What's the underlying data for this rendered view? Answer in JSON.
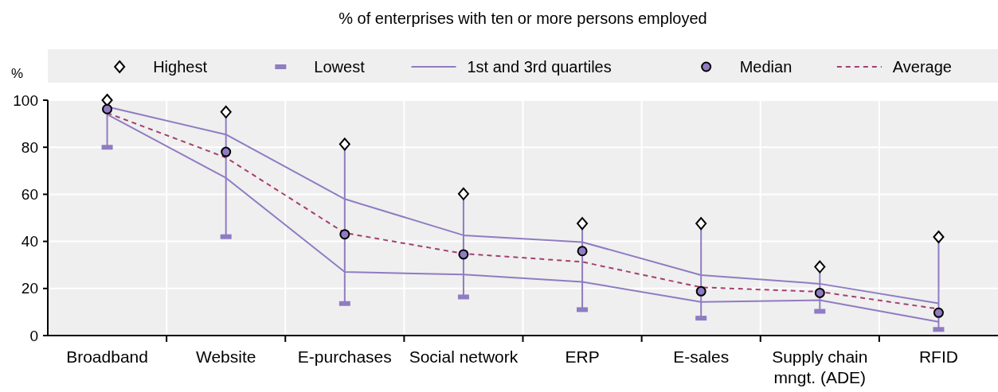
{
  "chart_data": {
    "type": "line",
    "title": "% of enterprises with ten or more persons employed",
    "ylabel": "%",
    "categories": [
      "Broadband",
      "Website",
      "E-purchases",
      "Social network",
      "ERP",
      "E-sales",
      "Supply chain mngt. (ADE)",
      "RFID"
    ],
    "ylim": [
      0,
      100
    ],
    "yticks": [
      0,
      20,
      40,
      60,
      80,
      100
    ],
    "grid": true,
    "legend": "top",
    "series": [
      {
        "name": "Highest",
        "type": "scatter",
        "marker": "diamond",
        "color": "#ffffff",
        "values": [
          100,
          95,
          81.3,
          60.2,
          47.6,
          47.6,
          29.2,
          41.9
        ]
      },
      {
        "name": "Lowest",
        "type": "scatter",
        "marker": "square",
        "color": "#8f7cc2",
        "values": [
          80,
          42,
          13.6,
          16.4,
          11,
          7.4,
          10.3,
          2.6
        ]
      },
      {
        "name": "1st and 3rd quartiles",
        "marker": "none",
        "line_style": "solid",
        "color": "#8f7cc2",
        "values": [
          97.2,
          85.4,
          58,
          42.6,
          39.7,
          25.7,
          22,
          13.7
        ]
      },
      {
        "marker": "none",
        "line_style": "solid",
        "color": "#8f7cc2",
        "values": [
          94,
          67,
          27,
          25.9,
          22.8,
          14.3,
          15,
          5.8
        ]
      },
      {
        "name": "Median",
        "type": "scatter",
        "marker": "circle",
        "color": "#8f7cc2",
        "values": [
          96.2,
          78,
          43,
          34.5,
          35.9,
          18.8,
          18.1,
          9.7
        ]
      },
      {
        "name": "Average",
        "marker": "none",
        "line_style": "dashed",
        "color": "#a3406f",
        "values": [
          94.6,
          75.6,
          43.6,
          34.8,
          31.3,
          20.5,
          18.6,
          11.3
        ]
      }
    ]
  }
}
